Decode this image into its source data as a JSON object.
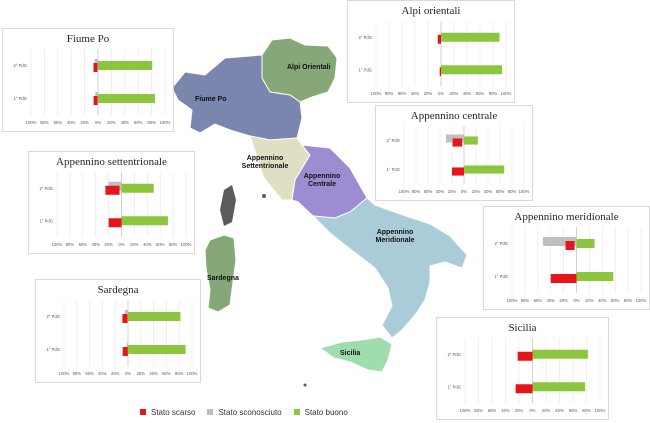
{
  "colors": {
    "scarso": "#e8141b",
    "sconosciuto": "#bfbfbf",
    "buono": "#8cc63f",
    "po": "#7a86ad",
    "alpi": "#86a878",
    "app_sett": "#e0dfc4",
    "app_centrale": "#9d8cd1",
    "app_merid": "#a9ccd8",
    "sicilia": "#9fdcae",
    "sardegna": "#86a878",
    "rest": "#5b5b5b"
  },
  "map": {
    "labels": {
      "fiume_po": "Fiume Po",
      "alpi": "Alpi Orientali",
      "app_sett_1": "Appennino",
      "app_sett_2": "Settentrionale",
      "app_centrale_1": "Appennino",
      "app_centrale_2": "Centrale",
      "app_merid_1": "Appennino",
      "app_merid_2": "Meridionale",
      "sardegna": "Sardegna",
      "sicilia": "Sicilia"
    }
  },
  "legend": {
    "scarso": "Stato scarso",
    "sconosciuto": "Stato sconosciuto",
    "buono": "Stato buono"
  },
  "chart_data": [
    {
      "type": "bar",
      "title": "Fiume Po",
      "categories": [
        "2° PdG",
        "1° PdG"
      ],
      "series": [
        {
          "name": "Stato scarso",
          "values": [
            -6,
            -6
          ]
        },
        {
          "name": "Stato sconosciuto",
          "values": [
            -5,
            -4
          ]
        },
        {
          "name": "Stato buono",
          "values": [
            81,
            85
          ]
        }
      ],
      "ticks": [
        "100%",
        "80%",
        "60%",
        "40%",
        "20%",
        "0%",
        "20%",
        "40%",
        "60%",
        "80%",
        "100%"
      ],
      "xlim": [
        -100,
        100
      ]
    },
    {
      "type": "bar",
      "title": "Alpi orientali",
      "categories": [
        "2° PdG",
        "1° PdG"
      ],
      "series": [
        {
          "name": "Stato scarso",
          "values": [
            -5,
            -2
          ]
        },
        {
          "name": "Stato sconosciuto",
          "values": [
            0,
            0
          ]
        },
        {
          "name": "Stato buono",
          "values": [
            90,
            94
          ]
        }
      ],
      "ticks": [
        "100%",
        "80%",
        "60%",
        "40%",
        "20%",
        "0%",
        "20%",
        "40%",
        "60%",
        "80%",
        "100%"
      ],
      "xlim": [
        -100,
        100
      ]
    },
    {
      "type": "bar",
      "title": "Appennino centrale",
      "categories": [
        "2° PdG",
        "1° PdG"
      ],
      "series": [
        {
          "name": "Stato scarso",
          "values": [
            -16,
            -20
          ]
        },
        {
          "name": "Stato sconosciuto",
          "values": [
            -30,
            0
          ]
        },
        {
          "name": "Stato buono",
          "values": [
            23,
            67
          ]
        }
      ],
      "ticks": [
        "100%",
        "80%",
        "60%",
        "40%",
        "20%",
        "0%",
        "20%",
        "40%",
        "60%",
        "80%",
        "100%"
      ],
      "xlim": [
        -100,
        100
      ]
    },
    {
      "type": "bar",
      "title": "Appennino settentrionale",
      "categories": [
        "2° PdG",
        "1° PdG"
      ],
      "series": [
        {
          "name": "Stato scarso",
          "values": [
            -22,
            -20
          ]
        },
        {
          "name": "Stato sconosciuto",
          "values": [
            -20,
            0
          ]
        },
        {
          "name": "Stato buono",
          "values": [
            50,
            72
          ]
        }
      ],
      "ticks": [
        "100%",
        "80%",
        "60%",
        "40%",
        "20%",
        "0%",
        "20%",
        "40%",
        "60%",
        "80%",
        "100%"
      ],
      "xlim": [
        -100,
        100
      ]
    },
    {
      "type": "bar",
      "title": "Appennino meridionale",
      "categories": [
        "2° PdG",
        "1° PdG"
      ],
      "series": [
        {
          "name": "Stato scarso",
          "values": [
            -14,
            -40
          ]
        },
        {
          "name": "Stato sconosciuto",
          "values": [
            -52,
            0
          ]
        },
        {
          "name": "Stato buono",
          "values": [
            28,
            57
          ]
        }
      ],
      "ticks": [
        "100%",
        "80%",
        "60%",
        "40%",
        "20%",
        "0%",
        "20%",
        "40%",
        "60%",
        "80%",
        "100%"
      ],
      "xlim": [
        -100,
        100
      ]
    },
    {
      "type": "bar",
      "title": "Sardegna",
      "categories": [
        "2° PdG",
        "1° PdG"
      ],
      "series": [
        {
          "name": "Stato scarso",
          "values": [
            -8,
            -8
          ]
        },
        {
          "name": "Stato sconosciuto",
          "values": [
            -5,
            -2
          ]
        },
        {
          "name": "Stato buono",
          "values": [
            82,
            90
          ]
        }
      ],
      "ticks": [
        "100%",
        "80%",
        "60%",
        "40%",
        "20%",
        "0%",
        "20%",
        "40%",
        "60%",
        "80%",
        "100%"
      ],
      "xlim": [
        -100,
        100
      ]
    },
    {
      "type": "bar",
      "title": "Sicilia",
      "categories": [
        "2° PdG",
        "1° PdG"
      ],
      "series": [
        {
          "name": "Stato scarso",
          "values": [
            -22,
            -25
          ]
        },
        {
          "name": "Stato sconosciuto",
          "values": [
            0,
            0
          ]
        },
        {
          "name": "Stato buono",
          "values": [
            82,
            78
          ]
        }
      ],
      "ticks": [
        "100%",
        "80%",
        "60%",
        "40%",
        "20%",
        "0%",
        "20%",
        "40%",
        "60%",
        "80%",
        "100%"
      ],
      "xlim": [
        -100,
        100
      ]
    }
  ]
}
